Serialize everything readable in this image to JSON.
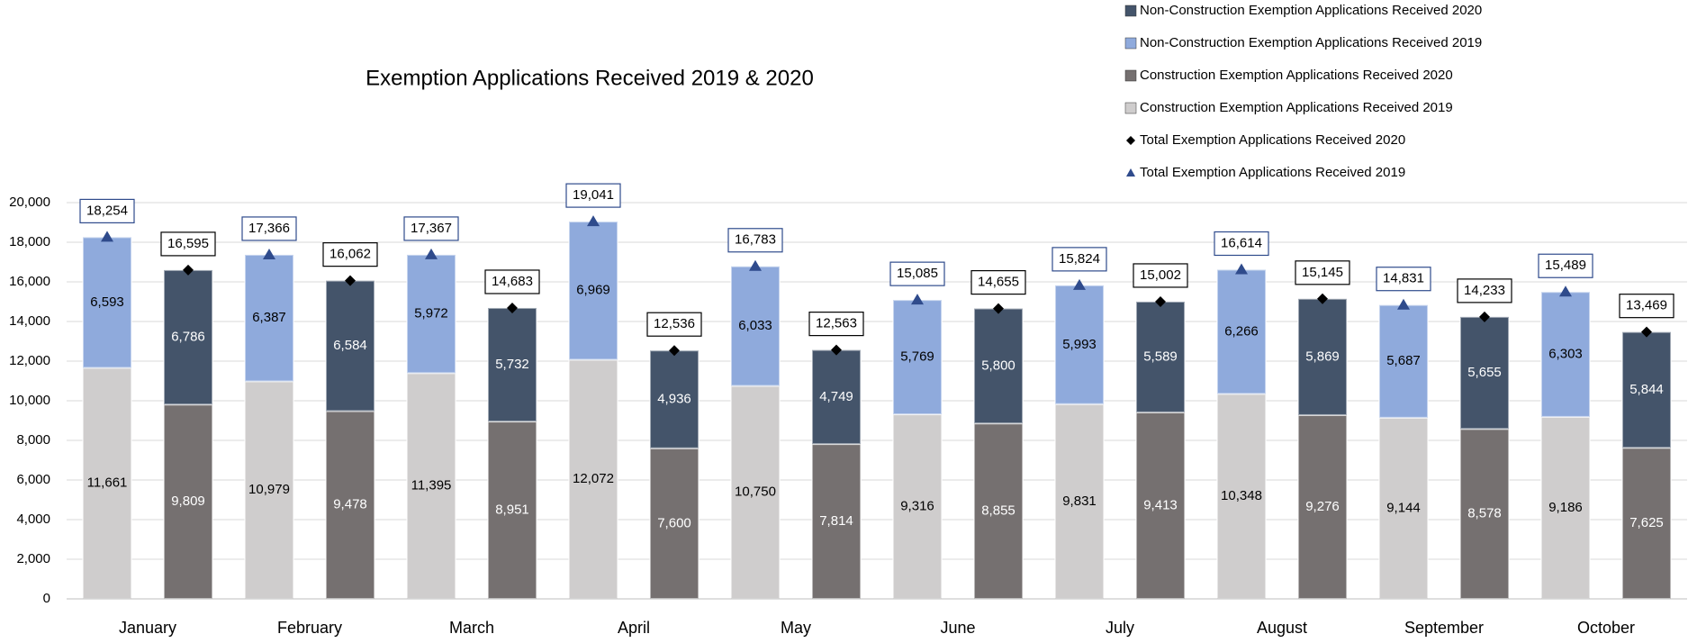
{
  "chart_data": {
    "type": "stacked_bar",
    "title": "Exemption Applications Received 2019 & 2020",
    "categories": [
      "January",
      "February",
      "March",
      "April",
      "May",
      "June",
      "July",
      "August",
      "September",
      "October"
    ],
    "ylim": [
      0,
      20000
    ],
    "yticks": [
      0,
      {
        "value": 2000,
        "label": "2,000"
      },
      {
        "value": 4000,
        "label": "4,000"
      },
      {
        "value": 6000,
        "label": "6,000"
      },
      {
        "value": 8000,
        "label": "8,000"
      },
      {
        "value": 10000,
        "label": "10,000"
      },
      {
        "value": 12000,
        "label": "12,000"
      },
      {
        "value": 14000,
        "label": "14,000"
      },
      {
        "value": 16000,
        "label": "16,000"
      },
      {
        "value": 18000,
        "label": "18,000"
      },
      {
        "value": 20000,
        "label": "20,000"
      }
    ],
    "grid": true,
    "legend": "top-right",
    "series": [
      {
        "name": "Non-Construction Exemption Applications Received 2020",
        "stack": "2020",
        "color": "#44546a",
        "label_color": "#ffffff",
        "values": [
          6786,
          6584,
          5732,
          4936,
          4749,
          5800,
          5589,
          5869,
          5655,
          5844
        ],
        "value_labels": [
          "6,786",
          "6,584",
          "5,732",
          "4,936",
          "4,749",
          "5,800",
          "5,589",
          "5,869",
          "5,655",
          "5,844"
        ]
      },
      {
        "name": "Non-Construction Exemption Applications Received 2019",
        "stack": "2019",
        "color": "#8faadc",
        "label_color": "#000000",
        "values": [
          6593,
          6387,
          5972,
          6969,
          6033,
          5769,
          5993,
          6266,
          5687,
          6303
        ],
        "value_labels": [
          "6,593",
          "6,387",
          "5,972",
          "6,969",
          "6,033",
          "5,769",
          "5,993",
          "6,266",
          "5,687",
          "6,303"
        ]
      },
      {
        "name": "Construction Exemption Applications Received 2020",
        "stack": "2020",
        "color": "#757070",
        "label_color": "#ffffff",
        "values": [
          9809,
          9478,
          8951,
          7600,
          7814,
          8855,
          9413,
          9276,
          8578,
          7625
        ],
        "value_labels": [
          "9,809",
          "9,478",
          "8,951",
          "7,600",
          "7,814",
          "8,855",
          "9,413",
          "9,276",
          "8,578",
          "7,625"
        ]
      },
      {
        "name": "Construction Exemption Applications Received 2019",
        "stack": "2019",
        "color": "#cfcdcd",
        "label_color": "#000000",
        "values": [
          11661,
          10979,
          11395,
          12072,
          10750,
          9316,
          9831,
          10348,
          9144,
          9186
        ],
        "value_labels": [
          "11,661",
          "10,979",
          "11,395",
          "12,072",
          "10,750",
          "9,316",
          "9,831",
          "10,348",
          "9,144",
          "9,186"
        ]
      },
      {
        "name": "Total Exemption Applications Received 2020",
        "stack": "2020",
        "marker": "diamond",
        "color": "#000000",
        "values": [
          16595,
          16062,
          14683,
          12536,
          12563,
          14655,
          15002,
          15145,
          14233,
          13469
        ],
        "value_labels": [
          "16,595",
          "16,062",
          "14,683",
          "12,536",
          "12,563",
          "14,655",
          "15,002",
          "15,145",
          "14,233",
          "13,469"
        ]
      },
      {
        "name": "Total Exemption Applications Received 2019",
        "stack": "2019",
        "marker": "triangle",
        "color": "#2f4b8c",
        "values": [
          18254,
          17366,
          17367,
          19041,
          16783,
          15085,
          15824,
          16614,
          14831,
          15489
        ],
        "value_labels": [
          "18,254",
          "17,366",
          "17,367",
          "19,041",
          "16,783",
          "15,085",
          "15,824",
          "16,614",
          "14,831",
          "15,489"
        ]
      }
    ]
  }
}
